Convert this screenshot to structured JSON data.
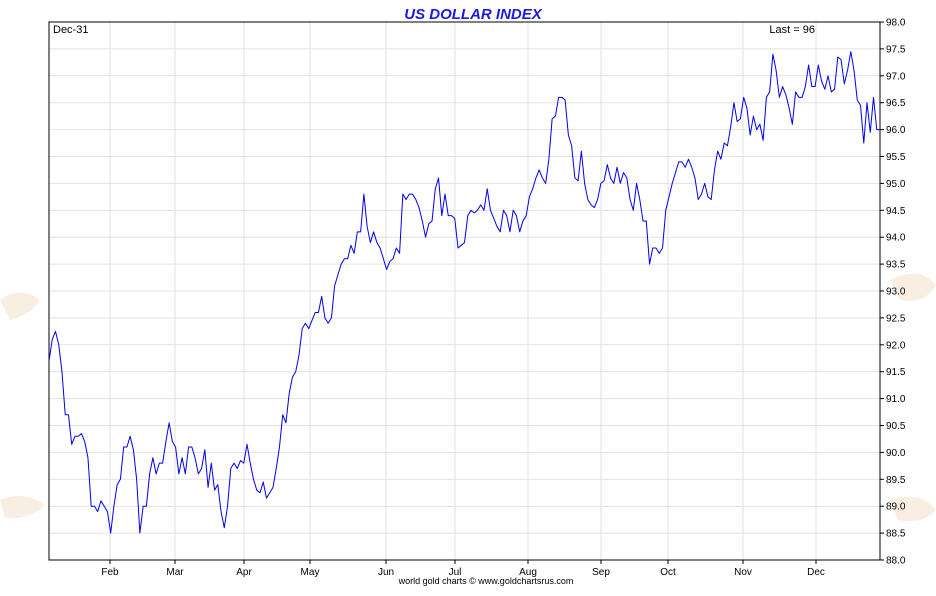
{
  "chart_data": {
    "type": "line",
    "title": "US DOLLAR INDEX",
    "start_label": "Dec-31",
    "last_label": "Last = 96",
    "footer": "world gold charts © www.goldchartsrus.com",
    "ylim": [
      88.0,
      98.0
    ],
    "y_ticks": [
      "88.0",
      "88.5",
      "89.0",
      "89.5",
      "90.0",
      "90.5",
      "91.0",
      "91.5",
      "92.0",
      "92.5",
      "93.0",
      "93.5",
      "94.0",
      "94.5",
      "95.0",
      "95.5",
      "96.0",
      "96.5",
      "97.0",
      "97.5",
      "98.0"
    ],
    "x_ticks": [
      "Feb",
      "Mar",
      "Apr",
      "May",
      "Jun",
      "Jul",
      "Aug",
      "Sep",
      "Oct",
      "Nov",
      "Dec"
    ],
    "grid": true,
    "colors": {
      "line": "#0000ee",
      "title": "#1a1ae6",
      "grid": "#e2e2e2"
    },
    "series": [
      {
        "values": [
          91.7,
          92.1,
          92.25,
          92.0,
          91.5,
          90.7,
          90.7,
          90.15,
          90.3,
          90.3,
          90.35,
          90.2,
          89.9,
          89.0,
          89.0,
          88.9,
          89.1,
          89.0,
          88.9,
          88.5,
          89.0,
          89.4,
          89.5,
          90.1,
          90.1,
          90.3,
          90.05,
          89.5,
          88.5,
          89.0,
          89.0,
          89.6,
          89.9,
          89.6,
          89.8,
          89.8,
          90.2,
          90.55,
          90.2,
          90.1,
          89.6,
          89.9,
          89.6,
          90.1,
          90.1,
          89.9,
          89.6,
          89.7,
          90.05,
          89.35,
          89.8,
          89.3,
          89.4,
          88.9,
          88.6,
          89.0,
          89.7,
          89.8,
          89.7,
          89.85,
          89.8,
          90.15,
          89.8,
          89.5,
          89.3,
          89.25,
          89.45,
          89.15,
          89.25,
          89.35,
          89.7,
          90.1,
          90.7,
          90.55,
          91.1,
          91.4,
          91.5,
          91.8,
          92.3,
          92.4,
          92.3,
          92.45,
          92.6,
          92.6,
          92.9,
          92.5,
          92.4,
          92.5,
          93.1,
          93.3,
          93.5,
          93.6,
          93.6,
          93.85,
          93.7,
          94.1,
          94.1,
          94.8,
          94.2,
          93.9,
          94.1,
          93.9,
          93.8,
          93.6,
          93.4,
          93.55,
          93.6,
          93.8,
          93.7,
          94.8,
          94.7,
          94.8,
          94.8,
          94.7,
          94.55,
          94.3,
          94.0,
          94.25,
          94.3,
          94.9,
          95.1,
          94.4,
          94.8,
          94.4,
          94.4,
          94.35,
          93.8,
          93.85,
          93.9,
          94.4,
          94.5,
          94.45,
          94.5,
          94.6,
          94.5,
          94.9,
          94.5,
          94.35,
          94.2,
          94.1,
          94.5,
          94.4,
          94.1,
          94.5,
          94.4,
          94.1,
          94.3,
          94.4,
          94.75,
          94.9,
          95.1,
          95.25,
          95.1,
          95.0,
          95.45,
          96.2,
          96.25,
          96.6,
          96.6,
          96.55,
          95.9,
          95.7,
          95.1,
          95.05,
          95.6,
          95.0,
          94.7,
          94.6,
          94.55,
          94.7,
          95.0,
          95.05,
          95.35,
          95.1,
          95.0,
          95.3,
          95.0,
          95.2,
          95.1,
          94.7,
          94.5,
          95.0,
          94.7,
          94.3,
          94.3,
          93.5,
          93.8,
          93.8,
          93.7,
          93.8,
          94.5,
          94.75,
          95.0,
          95.2,
          95.4,
          95.4,
          95.3,
          95.45,
          95.3,
          95.1,
          94.7,
          94.8,
          95.0,
          94.75,
          94.7,
          95.25,
          95.6,
          95.45,
          95.75,
          95.7,
          96.05,
          96.5,
          96.15,
          96.2,
          96.6,
          96.4,
          95.9,
          96.25,
          96.0,
          96.1,
          95.8,
          96.6,
          96.7,
          97.4,
          97.1,
          96.6,
          96.8,
          96.65,
          96.4,
          96.1,
          96.7,
          96.6,
          96.6,
          96.8,
          97.2,
          96.8,
          96.8,
          97.2,
          96.9,
          96.75,
          97.0,
          96.7,
          96.75,
          97.35,
          97.3,
          96.85,
          97.1,
          97.45,
          97.1,
          96.55,
          96.45,
          95.75,
          96.5,
          95.95,
          96.6,
          96.0,
          96.0
        ]
      }
    ]
  }
}
